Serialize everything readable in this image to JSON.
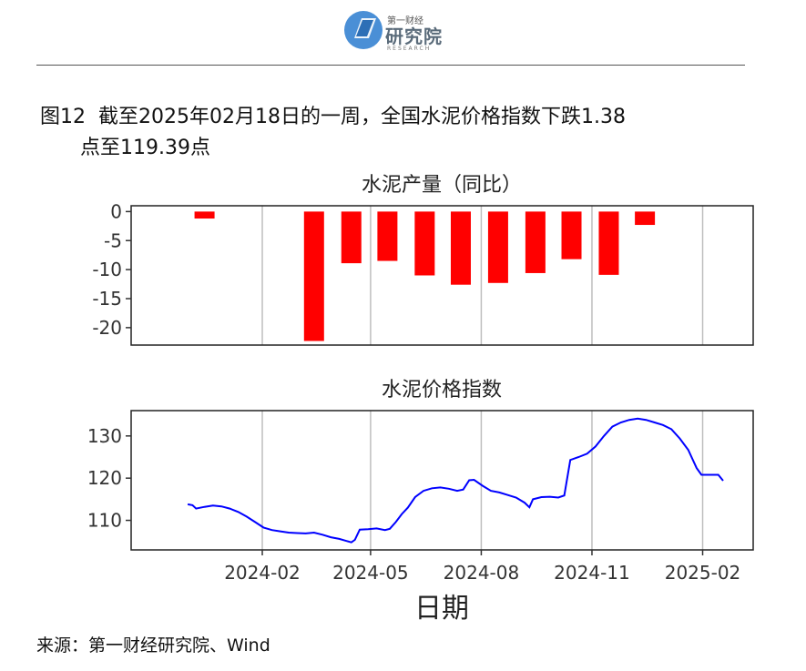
{
  "header": {
    "logo_small": "第一财经",
    "logo_big": "研究院",
    "logo_en": "RESEARCH"
  },
  "figure": {
    "number": "图12",
    "title_line1": "截至2025年02月18日的一周，全国水泥价格指数下跌1.38",
    "title_line2": "点至119.39点"
  },
  "source": "来源：第一财经研究院、Wind",
  "colors": {
    "bar": "#ff0000",
    "line": "#0000ff",
    "grid": "#bebebe"
  },
  "chart_data": [
    {
      "type": "bar",
      "title": "水泥产量（同比）",
      "x": [
        "2023-12",
        "2024-03",
        "2024-04",
        "2024-05",
        "2024-06",
        "2024-07",
        "2024-08",
        "2024-09",
        "2024-10",
        "2024-11",
        "2024-12"
      ],
      "values": [
        -1.2,
        -22.3,
        -8.9,
        -8.5,
        -11.0,
        -12.6,
        -12.3,
        -10.6,
        -8.2,
        -10.9,
        -2.3
      ],
      "ylim": [
        -23,
        1
      ],
      "yticks": [
        0,
        -5,
        -10,
        -15,
        -20
      ],
      "ytick_labels": [
        "0",
        "-5",
        "-10",
        "-15",
        "-20"
      ],
      "xlim": [
        "2023-10-15",
        "2025-03-15"
      ],
      "grid": "vertical"
    },
    {
      "type": "line",
      "title": "水泥价格指数",
      "xlabel": "日期",
      "ylim": [
        103,
        136
      ],
      "yticks": [
        110,
        120,
        130
      ],
      "ytick_labels": [
        "110",
        "120",
        "130"
      ],
      "xticks": [
        "2024-02-01",
        "2024-05-01",
        "2024-08-01",
        "2024-11-01",
        "2025-02-01"
      ],
      "xtick_labels": [
        "2024-02",
        "2024-05",
        "2024-08",
        "2024-11",
        "2025-02"
      ],
      "xlim": [
        "2023-10-15",
        "2025-03-15"
      ],
      "grid": "vertical",
      "points": [
        [
          "2023-12-01",
          113.8
        ],
        [
          "2023-12-05",
          113.6
        ],
        [
          "2023-12-08",
          112.8
        ],
        [
          "2023-12-15",
          113.2
        ],
        [
          "2023-12-22",
          113.5
        ],
        [
          "2023-12-29",
          113.3
        ],
        [
          "2024-01-05",
          112.8
        ],
        [
          "2024-01-12",
          112.0
        ],
        [
          "2024-01-19",
          110.9
        ],
        [
          "2024-01-26",
          109.6
        ],
        [
          "2024-02-02",
          108.3
        ],
        [
          "2024-02-09",
          107.7
        ],
        [
          "2024-02-16",
          107.4
        ],
        [
          "2024-02-23",
          107.1
        ],
        [
          "2024-03-01",
          107.0
        ],
        [
          "2024-03-08",
          106.9
        ],
        [
          "2024-03-15",
          107.1
        ],
        [
          "2024-03-22",
          106.6
        ],
        [
          "2024-03-29",
          106.0
        ],
        [
          "2024-04-05",
          105.6
        ],
        [
          "2024-04-10",
          105.2
        ],
        [
          "2024-04-15",
          104.8
        ],
        [
          "2024-04-18",
          105.4
        ],
        [
          "2024-04-22",
          107.8
        ],
        [
          "2024-04-29",
          107.9
        ],
        [
          "2024-05-06",
          108.1
        ],
        [
          "2024-05-13",
          107.7
        ],
        [
          "2024-05-17",
          108.0
        ],
        [
          "2024-05-22",
          109.6
        ],
        [
          "2024-05-27",
          111.5
        ],
        [
          "2024-06-01",
          113.0
        ],
        [
          "2024-06-07",
          115.5
        ],
        [
          "2024-06-14",
          117.0
        ],
        [
          "2024-06-21",
          117.6
        ],
        [
          "2024-06-28",
          117.8
        ],
        [
          "2024-07-05",
          117.5
        ],
        [
          "2024-07-12",
          117.0
        ],
        [
          "2024-07-17",
          117.3
        ],
        [
          "2024-07-22",
          119.5
        ],
        [
          "2024-07-26",
          119.6
        ],
        [
          "2024-08-02",
          118.2
        ],
        [
          "2024-08-09",
          117.0
        ],
        [
          "2024-08-16",
          116.6
        ],
        [
          "2024-08-23",
          116.0
        ],
        [
          "2024-08-30",
          115.4
        ],
        [
          "2024-09-06",
          114.2
        ],
        [
          "2024-09-10",
          113.1
        ],
        [
          "2024-09-13",
          115.0
        ],
        [
          "2024-09-20",
          115.5
        ],
        [
          "2024-09-27",
          115.6
        ],
        [
          "2024-10-04",
          115.4
        ],
        [
          "2024-10-09",
          115.9
        ],
        [
          "2024-10-14",
          124.3
        ],
        [
          "2024-10-21",
          125.0
        ],
        [
          "2024-10-28",
          125.8
        ],
        [
          "2024-11-04",
          127.5
        ],
        [
          "2024-11-11",
          130.0
        ],
        [
          "2024-11-18",
          132.2
        ],
        [
          "2024-11-25",
          133.2
        ],
        [
          "2024-12-02",
          133.8
        ],
        [
          "2024-12-09",
          134.1
        ],
        [
          "2024-12-16",
          133.8
        ],
        [
          "2024-12-23",
          133.2
        ],
        [
          "2024-12-30",
          132.6
        ],
        [
          "2025-01-06",
          131.6
        ],
        [
          "2025-01-13",
          129.4
        ],
        [
          "2025-01-20",
          126.7
        ],
        [
          "2025-01-27",
          122.4
        ],
        [
          "2025-01-31",
          120.8
        ],
        [
          "2025-02-07",
          120.8
        ],
        [
          "2025-02-14",
          120.8
        ],
        [
          "2025-02-18",
          119.4
        ]
      ]
    }
  ]
}
